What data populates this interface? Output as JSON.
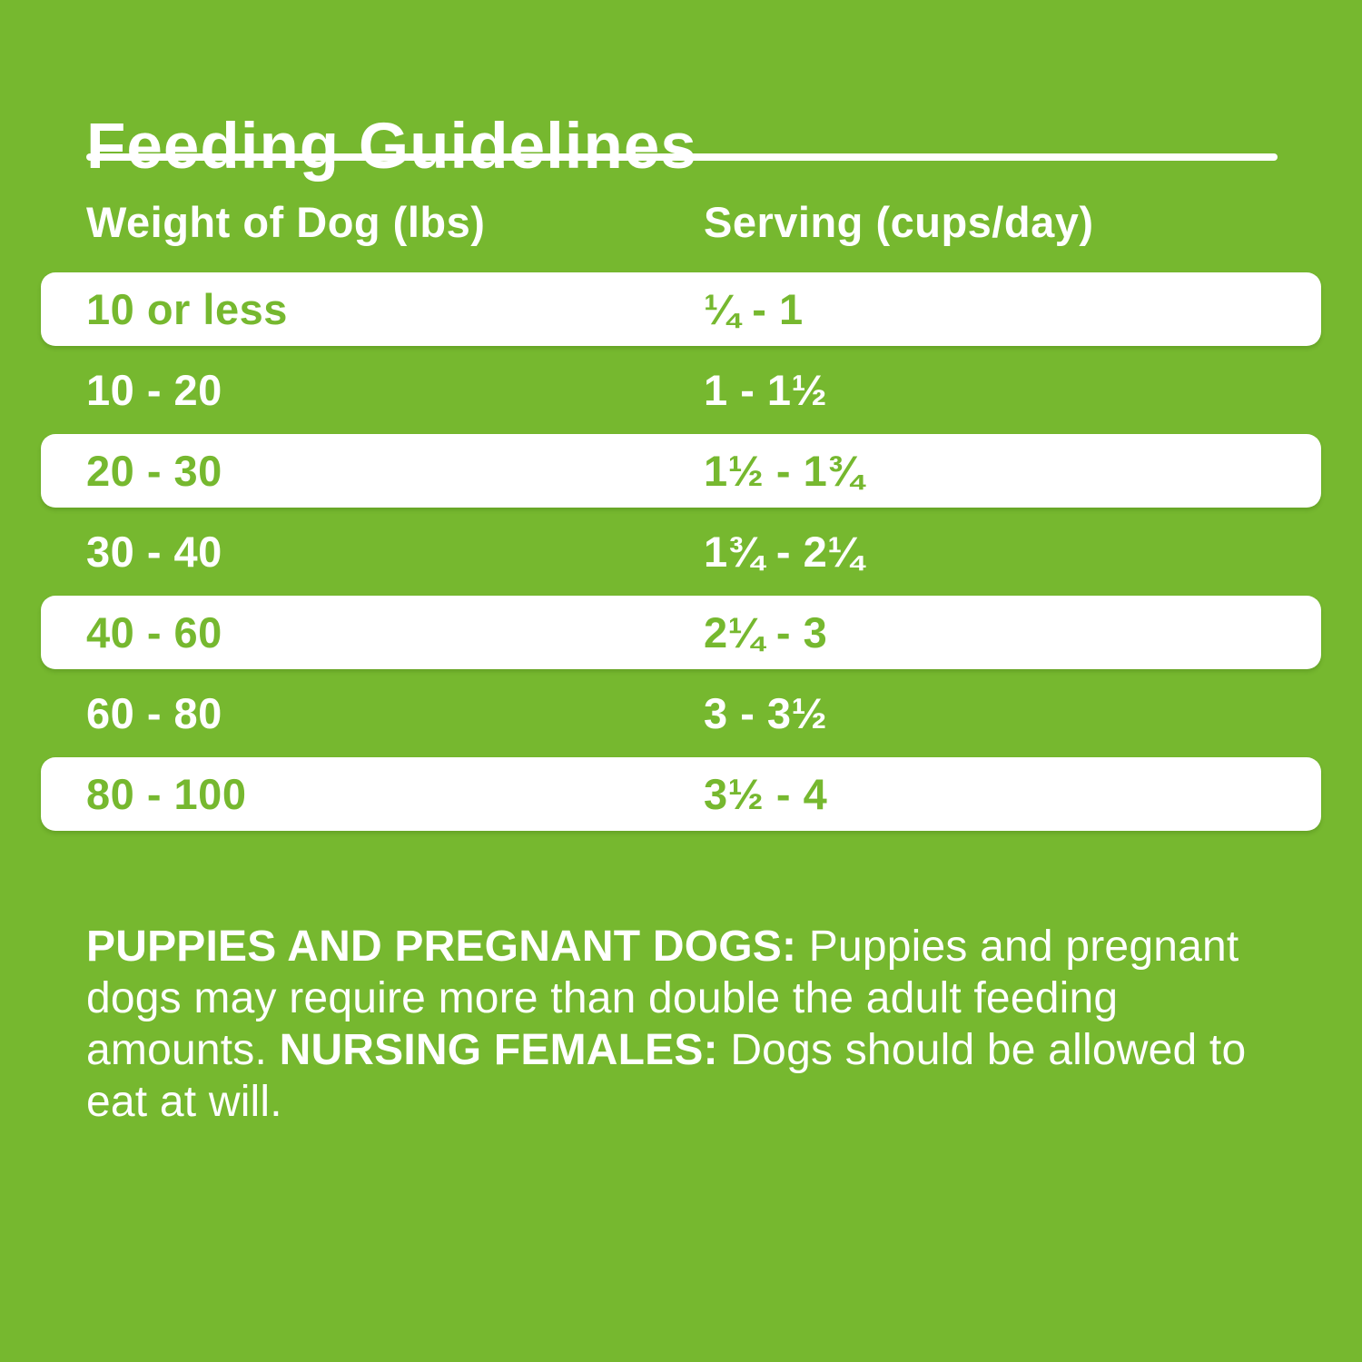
{
  "colors": {
    "background_green": "#76B82F",
    "text_white": "#FFFFFF",
    "row_highlight_white": "#FFFFFF",
    "row_text_green": "#76B82F"
  },
  "title": "Feeding Guidelines",
  "table": {
    "columns": [
      "Weight of Dog (lbs)",
      "Serving (cups/day)"
    ],
    "rows": [
      {
        "weight": "10 or less",
        "serving": "¼ - 1"
      },
      {
        "weight": "10 - 20",
        "serving": "1 - 1½"
      },
      {
        "weight": "20 - 30",
        "serving": "1½ - 1¾"
      },
      {
        "weight": "30 - 40",
        "serving": "1¾ - 2¼"
      },
      {
        "weight": "40 - 60",
        "serving": "2¼ - 3"
      },
      {
        "weight": "60 - 80",
        "serving": "3 - 3½"
      },
      {
        "weight": "80 - 100",
        "serving": "3½ - 4"
      }
    ]
  },
  "note": {
    "segments": [
      {
        "text": "PUPPIES AND PREGNANT DOGS:",
        "bold": true
      },
      {
        "text": " Puppies and pregnant dogs may require more than double the adult feeding amounts. ",
        "bold": false
      },
      {
        "text": "NURSING FEMALES:",
        "bold": true
      },
      {
        "text": " Dogs should be allowed to eat at will.",
        "bold": false
      }
    ]
  }
}
